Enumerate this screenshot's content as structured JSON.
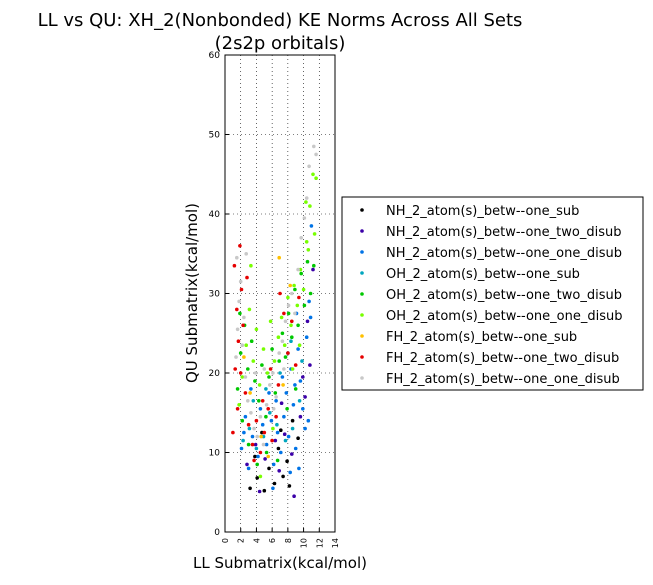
{
  "chart_data": {
    "type": "scatter",
    "title_line1": "LL vs QU: XH_2(Nonbonded) KE Norms Across All Sets",
    "title_line2": "(2s2p orbitals)",
    "xlabel": "LL Submatrix(kcal/mol)",
    "ylabel": "QU Submatrix(kcal/mol)",
    "xlim": [
      0,
      14
    ],
    "ylim": [
      0,
      60
    ],
    "xticks": [
      "0",
      "2",
      "4",
      "6",
      "8",
      "10",
      "12",
      "14"
    ],
    "yticks": [
      "0",
      "10",
      "20",
      "30",
      "40",
      "50",
      "60"
    ],
    "grid": true,
    "legend_position": "right, outside plot",
    "series": [
      {
        "name": "NH_2_atom(s)_betw--one_sub",
        "color": "#000000",
        "points": [
          [
            3.2,
            5.5
          ],
          [
            4.1,
            6.8
          ],
          [
            5.0,
            5.2
          ],
          [
            6.3,
            6.1
          ],
          [
            7.4,
            7.0
          ],
          [
            8.2,
            5.8
          ],
          [
            3.8,
            9.5
          ],
          [
            6.8,
            10.5
          ],
          [
            7.9,
            8.9
          ],
          [
            9.3,
            11.8
          ],
          [
            4.7,
            12.5
          ],
          [
            8.6,
            14.0
          ],
          [
            5.6,
            8.0
          ],
          [
            7.1,
            12.8
          ]
        ]
      },
      {
        "name": "NH_2_atom(s)_betw--one_two_disub",
        "color": "#3b00a8",
        "points": [
          [
            2.8,
            8.5
          ],
          [
            3.9,
            11.0
          ],
          [
            5.1,
            9.2
          ],
          [
            6.4,
            11.5
          ],
          [
            7.6,
            12.3
          ],
          [
            8.5,
            9.8
          ],
          [
            9.6,
            14.5
          ],
          [
            10.2,
            17.0
          ],
          [
            10.8,
            21.0
          ],
          [
            11.2,
            33.0
          ],
          [
            8.8,
            4.5
          ],
          [
            4.4,
            5.1
          ],
          [
            6.9,
            7.7
          ],
          [
            9.9,
            19.5
          ],
          [
            7.2,
            16.2
          ],
          [
            10.5,
            26.5
          ]
        ]
      },
      {
        "name": "NH_2_atom(s)_betw--one_one_disub",
        "color": "#0073e6",
        "points": [
          [
            2.1,
            10.5
          ],
          [
            2.6,
            14.5
          ],
          [
            3.0,
            8.0
          ],
          [
            3.5,
            12.0
          ],
          [
            4.2,
            9.5
          ],
          [
            4.8,
            13.5
          ],
          [
            5.3,
            11.0
          ],
          [
            5.9,
            14.0
          ],
          [
            6.2,
            8.5
          ],
          [
            6.7,
            12.5
          ],
          [
            7.1,
            10.0
          ],
          [
            7.5,
            14.5
          ],
          [
            7.8,
            17.5
          ],
          [
            8.1,
            12.0
          ],
          [
            8.4,
            20.5
          ],
          [
            8.7,
            16.0
          ],
          [
            9.0,
            10.5
          ],
          [
            9.3,
            23.0
          ],
          [
            9.6,
            19.0
          ],
          [
            9.9,
            15.5
          ],
          [
            10.2,
            13.0
          ],
          [
            10.4,
            24.5
          ],
          [
            10.7,
            29.0
          ],
          [
            11.0,
            38.5
          ],
          [
            10.9,
            27.0
          ],
          [
            8.9,
            18.5
          ],
          [
            8.0,
            22.5
          ],
          [
            7.3,
            19.5
          ],
          [
            6.5,
            16.5
          ],
          [
            5.6,
            17.5
          ],
          [
            4.5,
            15.5
          ],
          [
            3.3,
            18.0
          ],
          [
            2.4,
            12.5
          ],
          [
            9.4,
            8.0
          ],
          [
            8.3,
            7.5
          ],
          [
            6.1,
            5.5
          ],
          [
            10.6,
            14.0
          ],
          [
            9.1,
            27.5
          ]
        ]
      },
      {
        "name": "OH_2_atom(s)_betw--one_sub",
        "color": "#00a6bf",
        "points": [
          [
            2.3,
            11.5
          ],
          [
            3.1,
            13.0
          ],
          [
            4.0,
            10.5
          ],
          [
            4.9,
            12.0
          ],
          [
            5.7,
            15.0
          ],
          [
            6.6,
            13.5
          ],
          [
            7.7,
            11.5
          ],
          [
            8.6,
            13.0
          ],
          [
            9.5,
            16.5
          ],
          [
            3.6,
            16.5
          ],
          [
            5.2,
            18.0
          ],
          [
            7.0,
            20.0
          ],
          [
            8.4,
            24.0
          ],
          [
            9.8,
            21.5
          ]
        ]
      },
      {
        "name": "OH_2_atom(s)_betw--one_two_disub",
        "color": "#00c800",
        "points": [
          [
            1.6,
            18.0
          ],
          [
            2.0,
            22.5
          ],
          [
            2.5,
            26.0
          ],
          [
            2.9,
            20.5
          ],
          [
            3.4,
            24.0
          ],
          [
            3.8,
            19.0
          ],
          [
            4.3,
            16.5
          ],
          [
            4.7,
            21.0
          ],
          [
            5.2,
            14.5
          ],
          [
            5.6,
            19.5
          ],
          [
            6.0,
            23.0
          ],
          [
            6.4,
            17.5
          ],
          [
            6.9,
            21.5
          ],
          [
            7.3,
            25.0
          ],
          [
            7.7,
            22.0
          ],
          [
            8.1,
            27.5
          ],
          [
            8.5,
            24.5
          ],
          [
            8.9,
            30.5
          ],
          [
            9.3,
            26.0
          ],
          [
            9.7,
            32.5
          ],
          [
            10.1,
            28.5
          ],
          [
            10.5,
            34.0
          ],
          [
            10.9,
            30.0
          ],
          [
            11.3,
            33.5
          ],
          [
            3.0,
            11.0
          ],
          [
            4.1,
            8.5
          ],
          [
            5.3,
            10.0
          ],
          [
            6.7,
            9.0
          ],
          [
            7.9,
            15.5
          ],
          [
            9.0,
            18.0
          ],
          [
            2.2,
            14.0
          ],
          [
            1.9,
            27.5
          ]
        ]
      },
      {
        "name": "OH_2_atom(s)_betw--one_one_disub",
        "color": "#78ff00",
        "points": [
          [
            1.8,
            16.0
          ],
          [
            2.2,
            19.5
          ],
          [
            2.7,
            23.5
          ],
          [
            3.1,
            28.0
          ],
          [
            3.6,
            21.5
          ],
          [
            4.0,
            25.5
          ],
          [
            4.4,
            18.5
          ],
          [
            4.9,
            23.0
          ],
          [
            5.4,
            20.0
          ],
          [
            5.8,
            26.5
          ],
          [
            6.3,
            21.5
          ],
          [
            6.8,
            24.5
          ],
          [
            7.2,
            27.0
          ],
          [
            7.6,
            23.5
          ],
          [
            8.0,
            29.5
          ],
          [
            8.4,
            26.0
          ],
          [
            8.8,
            31.0
          ],
          [
            9.2,
            28.5
          ],
          [
            9.6,
            33.0
          ],
          [
            10.0,
            30.5
          ],
          [
            10.4,
            36.5
          ],
          [
            10.8,
            41.0
          ],
          [
            11.2,
            45.0
          ],
          [
            11.6,
            44.5
          ],
          [
            10.3,
            41.5
          ],
          [
            9.5,
            23.5
          ],
          [
            8.6,
            20.5
          ],
          [
            6.1,
            13.0
          ],
          [
            3.3,
            33.5
          ],
          [
            4.5,
            7.0
          ],
          [
            10.6,
            35.5
          ],
          [
            11.4,
            37.5
          ]
        ]
      },
      {
        "name": "FH_2_atom(s)_betw--one_sub",
        "color": "#ffc000",
        "points": [
          [
            2.4,
            22.0
          ],
          [
            3.2,
            17.5
          ],
          [
            4.6,
            12.0
          ],
          [
            6.9,
            34.5
          ],
          [
            5.5,
            9.5
          ],
          [
            7.4,
            18.5
          ],
          [
            8.3,
            31.0
          ]
        ]
      },
      {
        "name": "FH_2_atom(s)_betw--one_two_disub",
        "color": "#e60000",
        "points": [
          [
            1.2,
            33.5
          ],
          [
            1.5,
            28.0
          ],
          [
            1.7,
            24.0
          ],
          [
            1.9,
            36.0
          ],
          [
            2.1,
            30.5
          ],
          [
            2.3,
            26.0
          ],
          [
            2.0,
            20.0
          ],
          [
            1.6,
            15.5
          ],
          [
            2.6,
            17.5
          ],
          [
            3.0,
            13.5
          ],
          [
            3.5,
            11.0
          ],
          [
            4.0,
            14.0
          ],
          [
            4.5,
            10.0
          ],
          [
            5.0,
            12.5
          ],
          [
            5.5,
            15.5
          ],
          [
            6.0,
            11.5
          ],
          [
            6.5,
            14.5
          ],
          [
            7.0,
            30.0
          ],
          [
            7.5,
            27.5
          ],
          [
            8.0,
            22.5
          ],
          [
            8.5,
            26.5
          ],
          [
            9.0,
            21.0
          ],
          [
            9.4,
            29.5
          ],
          [
            6.8,
            18.5
          ],
          [
            5.8,
            20.5
          ],
          [
            4.8,
            16.5
          ],
          [
            3.7,
            9.0
          ],
          [
            1.3,
            20.5
          ],
          [
            2.8,
            32.0
          ],
          [
            1.0,
            12.5
          ]
        ]
      },
      {
        "name": "FH_2_atom(s)_betw--one_one_disub",
        "color": "#c8c8c8",
        "points": [
          [
            1.4,
            22.0
          ],
          [
            1.6,
            25.5
          ],
          [
            1.8,
            29.0
          ],
          [
            2.0,
            31.5
          ],
          [
            2.2,
            23.5
          ],
          [
            2.4,
            27.0
          ],
          [
            2.6,
            19.5
          ],
          [
            2.9,
            16.5
          ],
          [
            3.3,
            15.0
          ],
          [
            3.7,
            13.0
          ],
          [
            4.1,
            12.0
          ],
          [
            4.5,
            14.5
          ],
          [
            4.9,
            11.0
          ],
          [
            5.3,
            16.0
          ],
          [
            5.7,
            18.5
          ],
          [
            6.1,
            20.0
          ],
          [
            6.5,
            17.0
          ],
          [
            6.9,
            22.5
          ],
          [
            7.3,
            24.0
          ],
          [
            7.7,
            26.5
          ],
          [
            8.1,
            28.5
          ],
          [
            8.5,
            30.0
          ],
          [
            8.9,
            27.5
          ],
          [
            9.3,
            33.0
          ],
          [
            9.7,
            37.0
          ],
          [
            10.1,
            39.5
          ],
          [
            10.4,
            42.0
          ],
          [
            10.7,
            46.0
          ],
          [
            11.3,
            48.5
          ],
          [
            11.6,
            47.5
          ],
          [
            1.5,
            34.5
          ],
          [
            2.7,
            35.0
          ],
          [
            5.0,
            20.5
          ],
          [
            6.2,
            15.5
          ],
          [
            7.5,
            20.5
          ],
          [
            3.9,
            20.0
          ]
        ]
      }
    ]
  }
}
